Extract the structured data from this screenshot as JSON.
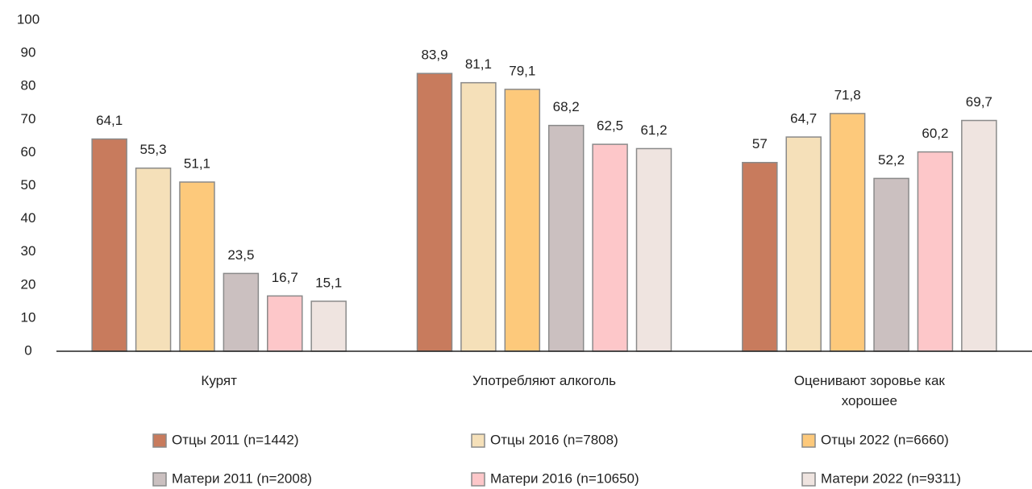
{
  "chart_data": {
    "type": "bar",
    "categories": [
      "Курят",
      "Употребляют алкоголь",
      "Оценивают зоровье как хорошее"
    ],
    "series": [
      {
        "name": "Отцы 2011 (n=1442)",
        "color": "#c87b5d",
        "values": [
          64.1,
          83.9,
          57
        ],
        "value_labels": [
          "64,1",
          "83,9",
          "57"
        ]
      },
      {
        "name": "Отцы 2016 (n=7808)",
        "color": "#f5e0b9",
        "values": [
          55.3,
          81.1,
          64.7
        ],
        "value_labels": [
          "55,3",
          "81,1",
          "64,7"
        ]
      },
      {
        "name": "Отцы 2022 (n=6660)",
        "color": "#fdc97b",
        "values": [
          51.1,
          79.1,
          71.8
        ],
        "value_labels": [
          "51,1",
          "79,1",
          "71,8"
        ]
      },
      {
        "name": "Матери 2011 (n=2008)",
        "color": "#cbc0c0",
        "values": [
          23.5,
          68.2,
          52.2
        ],
        "value_labels": [
          "23,5",
          "68,2",
          "52,2"
        ]
      },
      {
        "name": "Матери 2016 (n=10650)",
        "color": "#fdc7c9",
        "values": [
          16.7,
          62.5,
          60.2
        ],
        "value_labels": [
          "16,7",
          "62,5",
          "60,2"
        ]
      },
      {
        "name": "Матери 2022 (n=9311)",
        "color": "#efe4e0",
        "values": [
          15.1,
          61.2,
          69.7
        ],
        "value_labels": [
          "15,1",
          "61,2",
          "69,7"
        ]
      }
    ],
    "ylim": [
      0,
      100
    ],
    "yticks": [
      0,
      10,
      20,
      30,
      40,
      50,
      60,
      70,
      80,
      90,
      100
    ],
    "legend": "bottom"
  }
}
